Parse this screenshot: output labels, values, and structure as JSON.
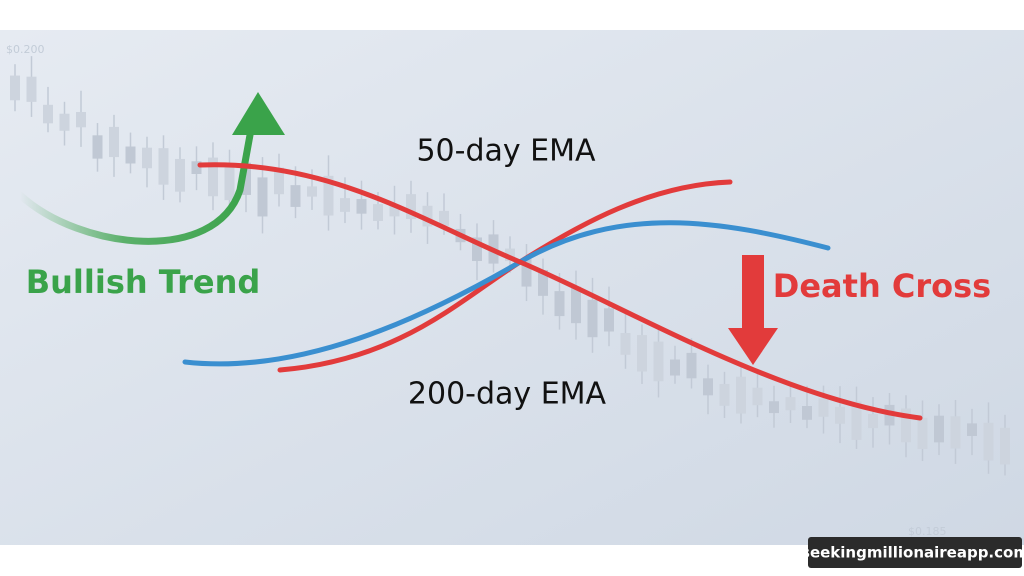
{
  "price_labels": [
    "$0.200",
    "$0.185"
  ],
  "annotations": {
    "fast_ema": "50-day EMA",
    "slow_ema": "200-day EMA",
    "left": "Bullish Trend",
    "right": "Death Cross"
  },
  "watermark": "seekingmillionaireapp.com"
}
